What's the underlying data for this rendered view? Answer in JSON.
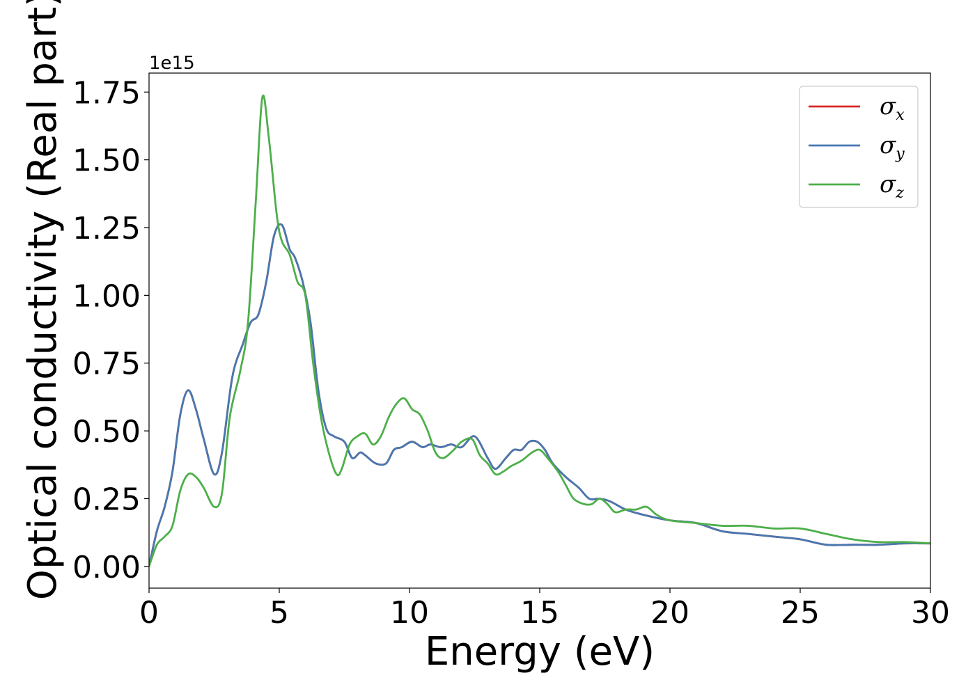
{
  "chart_data": {
    "type": "line",
    "title": "",
    "xlabel": "Energy (eV)",
    "ylabel": "Optical conductivity (Real part)",
    "y_offset_label": "1e15",
    "xlim": [
      0,
      30
    ],
    "ylim": [
      -0.08,
      1.82
    ],
    "x_ticks": [
      0,
      5,
      10,
      15,
      20,
      25,
      30
    ],
    "x_tick_labels": [
      "0",
      "5",
      "10",
      "15",
      "20",
      "25",
      "30"
    ],
    "y_ticks": [
      0.0,
      0.25,
      0.5,
      0.75,
      1.0,
      1.25,
      1.5,
      1.75
    ],
    "y_tick_labels": [
      "0.00",
      "0.25",
      "0.50",
      "0.75",
      "1.00",
      "1.25",
      "1.50",
      "1.75"
    ],
    "grid": false,
    "legend_position": "top-right",
    "series": [
      {
        "name": "σx",
        "symbol": "σ",
        "subscript": "x",
        "color": "#d62728",
        "x": [
          0,
          0.3,
          0.6,
          0.9,
          1.2,
          1.5,
          1.8,
          2.1,
          2.5,
          2.8,
          3.2,
          3.6,
          3.9,
          4.2,
          4.5,
          4.8,
          5.1,
          5.4,
          5.6,
          5.9,
          6.2,
          6.5,
          6.8,
          7.1,
          7.5,
          7.8,
          8.1,
          8.3,
          8.7,
          9.1,
          9.4,
          9.7,
          10.1,
          10.5,
          10.8,
          11.2,
          11.6,
          12.0,
          12.5,
          13.0,
          13.3,
          13.7,
          14.0,
          14.3,
          14.6,
          14.9,
          15.2,
          15.5,
          16.0,
          16.5,
          16.9,
          17.3,
          17.7,
          18.3,
          19.0,
          20.0,
          21.0,
          22.0,
          23.0,
          24.0,
          25.0,
          26.0,
          27.0,
          28.0,
          29.0,
          30.0
        ],
        "values": [
          0.0,
          0.13,
          0.22,
          0.35,
          0.56,
          0.65,
          0.58,
          0.47,
          0.34,
          0.42,
          0.7,
          0.82,
          0.9,
          0.93,
          1.05,
          1.22,
          1.26,
          1.17,
          1.14,
          1.05,
          0.9,
          0.65,
          0.51,
          0.48,
          0.46,
          0.4,
          0.42,
          0.41,
          0.38,
          0.38,
          0.43,
          0.44,
          0.46,
          0.44,
          0.45,
          0.44,
          0.45,
          0.44,
          0.48,
          0.4,
          0.36,
          0.4,
          0.43,
          0.43,
          0.46,
          0.46,
          0.43,
          0.38,
          0.33,
          0.29,
          0.25,
          0.25,
          0.24,
          0.21,
          0.19,
          0.17,
          0.16,
          0.13,
          0.12,
          0.11,
          0.1,
          0.08,
          0.08,
          0.08,
          0.085,
          0.085
        ]
      },
      {
        "name": "σy",
        "symbol": "σ",
        "subscript": "y",
        "color": "#4878b0",
        "x": [
          0,
          0.3,
          0.6,
          0.9,
          1.2,
          1.5,
          1.8,
          2.1,
          2.5,
          2.8,
          3.2,
          3.6,
          3.9,
          4.2,
          4.5,
          4.8,
          5.1,
          5.4,
          5.6,
          5.9,
          6.2,
          6.5,
          6.8,
          7.1,
          7.5,
          7.8,
          8.1,
          8.3,
          8.7,
          9.1,
          9.4,
          9.7,
          10.1,
          10.5,
          10.8,
          11.2,
          11.6,
          12.0,
          12.5,
          13.0,
          13.3,
          13.7,
          14.0,
          14.3,
          14.6,
          14.9,
          15.2,
          15.5,
          16.0,
          16.5,
          16.9,
          17.3,
          17.7,
          18.3,
          19.0,
          20.0,
          21.0,
          22.0,
          23.0,
          24.0,
          25.0,
          26.0,
          27.0,
          28.0,
          29.0,
          30.0
        ],
        "values": [
          0.0,
          0.13,
          0.22,
          0.35,
          0.56,
          0.65,
          0.58,
          0.47,
          0.34,
          0.42,
          0.7,
          0.82,
          0.9,
          0.93,
          1.05,
          1.22,
          1.26,
          1.17,
          1.14,
          1.05,
          0.9,
          0.65,
          0.51,
          0.48,
          0.46,
          0.4,
          0.42,
          0.41,
          0.38,
          0.38,
          0.43,
          0.44,
          0.46,
          0.44,
          0.45,
          0.44,
          0.45,
          0.44,
          0.48,
          0.4,
          0.36,
          0.4,
          0.43,
          0.43,
          0.46,
          0.46,
          0.43,
          0.38,
          0.33,
          0.29,
          0.25,
          0.25,
          0.24,
          0.21,
          0.19,
          0.17,
          0.16,
          0.13,
          0.12,
          0.11,
          0.1,
          0.08,
          0.08,
          0.08,
          0.085,
          0.085
        ]
      },
      {
        "name": "σz",
        "symbol": "σ",
        "subscript": "z",
        "color": "#4daf4a",
        "x": [
          0,
          0.3,
          0.6,
          0.9,
          1.2,
          1.5,
          1.8,
          2.1,
          2.5,
          2.8,
          3.1,
          3.5,
          3.8,
          4.1,
          4.35,
          4.6,
          4.9,
          5.1,
          5.4,
          5.7,
          6.0,
          6.3,
          6.6,
          6.9,
          7.2,
          7.4,
          7.7,
          8.0,
          8.3,
          8.6,
          8.9,
          9.2,
          9.5,
          9.8,
          10.1,
          10.4,
          10.7,
          11.0,
          11.3,
          11.7,
          12.0,
          12.4,
          12.7,
          13.0,
          13.3,
          13.6,
          13.9,
          14.3,
          14.7,
          15.0,
          15.3,
          15.7,
          16.0,
          16.3,
          16.7,
          17.0,
          17.3,
          17.6,
          17.9,
          18.3,
          18.7,
          19.1,
          19.5,
          20.0,
          21.0,
          22.0,
          23.0,
          24.0,
          25.0,
          26.0,
          27.0,
          28.0,
          29.0,
          30.0
        ],
        "values": [
          0.0,
          0.08,
          0.11,
          0.15,
          0.28,
          0.34,
          0.33,
          0.29,
          0.22,
          0.27,
          0.55,
          0.72,
          0.9,
          1.35,
          1.73,
          1.58,
          1.3,
          1.2,
          1.15,
          1.05,
          1.0,
          0.75,
          0.55,
          0.42,
          0.34,
          0.36,
          0.45,
          0.48,
          0.49,
          0.45,
          0.48,
          0.55,
          0.6,
          0.62,
          0.58,
          0.56,
          0.5,
          0.42,
          0.4,
          0.43,
          0.46,
          0.47,
          0.41,
          0.38,
          0.34,
          0.35,
          0.37,
          0.39,
          0.42,
          0.43,
          0.4,
          0.35,
          0.3,
          0.25,
          0.23,
          0.23,
          0.25,
          0.23,
          0.2,
          0.21,
          0.21,
          0.22,
          0.19,
          0.17,
          0.16,
          0.15,
          0.15,
          0.14,
          0.14,
          0.12,
          0.1,
          0.09,
          0.09,
          0.085
        ]
      }
    ]
  }
}
